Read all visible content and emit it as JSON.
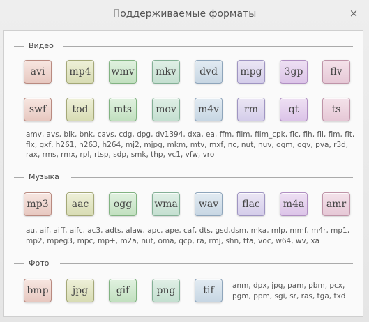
{
  "window": {
    "title": "Поддерживаемые форматы",
    "close_icon": "×"
  },
  "sections": {
    "video": {
      "label": "Видео",
      "row1": [
        "avi",
        "mp4",
        "wmv",
        "mkv",
        "dvd",
        "mpg",
        "3gp",
        "flv"
      ],
      "row2": [
        "swf",
        "tod",
        "mts",
        "mov",
        "m4v",
        "rm",
        "qt",
        "ts"
      ],
      "extra_lines": [
        "amv, avs, bik, bnk, cavs, cdg, dpg, dv1394, dxa, ea, ffm, film, film_cpk, flc, flh, fli, flm, flt,",
        "flx, gxf, h261, h263, h264, mj2, mjpg, mkm, mtv, mxf, nc, nut, nuv, ogm, ogv, pva, r3d,",
        "rax, rms, rmx, rpl, rtsp, sdp, smk, thp, vc1, vfw, vro"
      ]
    },
    "music": {
      "label": "Музыка",
      "row1": [
        "mp3",
        "aac",
        "ogg",
        "wma",
        "wav",
        "flac",
        "m4a",
        "amr"
      ],
      "extra_lines": [
        "au, aif, aiff, aifc, ac3, adts, alaw, apc, ape, caf, dts, gsd,dsm, mka, mlp, mmf, m4r, mp1,",
        "mp2, mpeg3, mpc, mp+, m2a, nut, oma, qcp, ra, rmj, shn, tta, voc, w64, wv, xa"
      ]
    },
    "photo": {
      "label": "Фото",
      "row1": [
        "bmp",
        "jpg",
        "gif",
        "png",
        "tif"
      ],
      "extra_lines": [
        "anm, dpx, jpg, pam, pbm, pcx,",
        "pgm, ppm, sgi, sr, ras, tga, txd"
      ]
    }
  },
  "colors": {
    "palette": [
      "red",
      "olive",
      "green",
      "teal",
      "blue",
      "lav",
      "purp",
      "pink"
    ]
  }
}
